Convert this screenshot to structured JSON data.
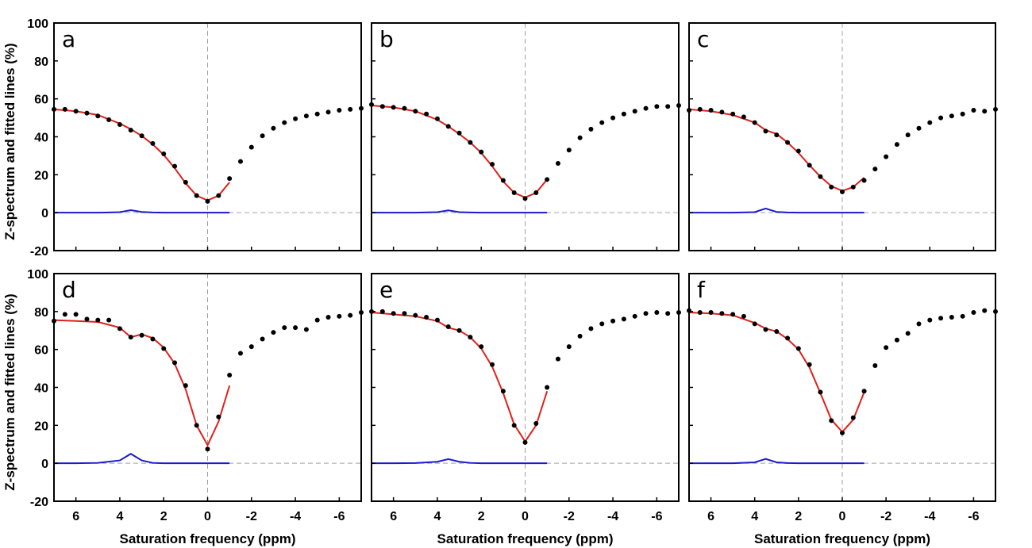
{
  "chart_data": {
    "type": "scatter",
    "xlabel": "Saturation frequency (ppm)",
    "ylabel": "Z-spectrum and fitted lines (%)",
    "xlim": [
      7,
      -7
    ],
    "ylim": [
      -20,
      100
    ],
    "x_reversed": true,
    "xticks": [
      6,
      4,
      2,
      0,
      -2,
      -4,
      -6
    ],
    "yticks": [
      -20,
      0,
      20,
      40,
      60,
      80,
      100
    ],
    "grid": false,
    "reference_lines": {
      "x": 0,
      "y": 0,
      "style": "dashed gray"
    },
    "colors": {
      "measured": "#000000",
      "fit": "#e0201b",
      "residual": "#1a1acc",
      "reference": "#a0a0a0"
    },
    "series_styles": {
      "measured": "black dots",
      "fit": "red line",
      "residual": "blue line"
    },
    "panels": [
      {
        "label": "a",
        "points": {
          "x": [
            7,
            6.5,
            6,
            5.5,
            5,
            4.5,
            4,
            3.5,
            3,
            2.5,
            2,
            1.5,
            1,
            0.5,
            0,
            -0.5,
            -1,
            -1.5,
            -2,
            -2.5,
            -3,
            -3.5,
            -4,
            -4.5,
            -5,
            -5.5,
            -6,
            -6.5,
            -7
          ],
          "y": [
            54.5,
            54.5,
            53.5,
            52.5,
            51,
            49,
            46.5,
            43.5,
            40.5,
            36.5,
            31,
            24.5,
            16,
            9,
            6,
            9,
            18,
            27,
            34.5,
            40.5,
            44.5,
            47.5,
            49.5,
            51,
            52,
            53,
            54,
            54.5,
            55
          ]
        },
        "fit": {
          "x": [
            7,
            6,
            5,
            4,
            3.5,
            3,
            2.5,
            2,
            1.5,
            1,
            0.5,
            0,
            -0.5,
            -1
          ],
          "y": [
            54.5,
            53.5,
            51.5,
            47,
            44,
            40.5,
            36,
            30.5,
            23.5,
            15.5,
            9,
            6.5,
            9,
            16
          ]
        },
        "residual": {
          "x": [
            7,
            6,
            5,
            4,
            3.5,
            3,
            2.5,
            2,
            1,
            0,
            -1
          ],
          "y": [
            0,
            0,
            0,
            0.3,
            1.3,
            0.4,
            0.1,
            0,
            0,
            0,
            0
          ]
        }
      },
      {
        "label": "b",
        "points": {
          "x": [
            7,
            6.5,
            6,
            5.5,
            5,
            4.5,
            4,
            3.5,
            3,
            2.5,
            2,
            1.5,
            1,
            0.5,
            0,
            -0.5,
            -1,
            -1.5,
            -2,
            -2.5,
            -3,
            -3.5,
            -4,
            -4.5,
            -5,
            -5.5,
            -6,
            -6.5,
            -7
          ],
          "y": [
            57,
            56,
            55.5,
            55,
            53.5,
            52,
            49.5,
            45.5,
            42,
            37,
            32,
            25.5,
            17,
            10.5,
            7.5,
            10.5,
            17.5,
            26,
            33,
            39.5,
            44,
            47.5,
            50,
            52,
            53.5,
            55,
            56,
            56,
            56.5
          ]
        },
        "fit": {
          "x": [
            7,
            6,
            5,
            4,
            3.5,
            3,
            2.5,
            2,
            1.5,
            1,
            0.5,
            0,
            -0.5,
            -1
          ],
          "y": [
            56.5,
            55.5,
            53.5,
            49,
            45.5,
            41.5,
            37,
            31.5,
            24.5,
            16.5,
            10.5,
            8,
            10.5,
            17.5
          ]
        },
        "residual": {
          "x": [
            7,
            6,
            5,
            4,
            3.5,
            3,
            2.5,
            2,
            1,
            0,
            -1
          ],
          "y": [
            0,
            0,
            0,
            0.3,
            1.2,
            0.3,
            0.1,
            0,
            0,
            0,
            0
          ]
        }
      },
      {
        "label": "c",
        "points": {
          "x": [
            7,
            6.5,
            6,
            5.5,
            5,
            4.5,
            4,
            3.5,
            3,
            2.5,
            2,
            1.5,
            1,
            0.5,
            0,
            -0.5,
            -1,
            -1.5,
            -2,
            -2.5,
            -3,
            -3.5,
            -4,
            -4.5,
            -5,
            -5.5,
            -6,
            -6.5,
            -7
          ],
          "y": [
            54,
            54.5,
            54,
            53,
            52,
            50.5,
            47.5,
            43,
            41,
            37,
            32.5,
            25,
            19,
            13.5,
            11,
            13.5,
            17,
            23,
            29.5,
            36,
            41,
            44.5,
            47.5,
            50,
            51,
            52,
            54,
            53.5,
            54.5
          ]
        },
        "fit": {
          "x": [
            7,
            6,
            5,
            4,
            3.5,
            3,
            2.5,
            2,
            1.5,
            1,
            0.5,
            0,
            -0.5,
            -1
          ],
          "y": [
            54.5,
            53.5,
            51.5,
            47.5,
            43.5,
            41.5,
            37,
            31.5,
            25,
            19,
            14,
            11.5,
            13.5,
            18.5
          ]
        },
        "residual": {
          "x": [
            7,
            6,
            5,
            4,
            3.5,
            3,
            2.5,
            2,
            1,
            0,
            -1
          ],
          "y": [
            0,
            0,
            0,
            0.3,
            2.2,
            0.4,
            0.1,
            0,
            0,
            0,
            0
          ]
        }
      },
      {
        "label": "d",
        "points": {
          "x": [
            7,
            6.5,
            6,
            5.5,
            5,
            4.5,
            4,
            3.5,
            3,
            2.5,
            2,
            1.5,
            1,
            0.5,
            0,
            -0.5,
            -1,
            -1.5,
            -2,
            -2.5,
            -3,
            -3.5,
            -4,
            -4.5,
            -5,
            -5.5,
            -6,
            -6.5,
            -7
          ],
          "y": [
            75,
            78.5,
            78.5,
            76,
            75.5,
            75.5,
            71,
            66.5,
            67.5,
            65.5,
            60.5,
            53,
            41,
            20,
            7.5,
            24.5,
            46.5,
            58,
            61.5,
            65.5,
            69,
            71.5,
            71.5,
            70.5,
            75.5,
            77,
            77.5,
            78,
            79.5
          ]
        },
        "fit": {
          "x": [
            7,
            6,
            5,
            4,
            3.5,
            3,
            2.5,
            2,
            1.5,
            1,
            0.5,
            0,
            -0.5,
            -1
          ],
          "y": [
            75.5,
            75,
            74.5,
            71.5,
            66.5,
            68,
            66,
            61,
            52.5,
            39,
            20,
            9.5,
            22,
            41
          ]
        },
        "residual": {
          "x": [
            7,
            6,
            5,
            4,
            3.5,
            3,
            2.5,
            2,
            1,
            0,
            -1
          ],
          "y": [
            0,
            0,
            0.2,
            1.5,
            5,
            1.5,
            0.2,
            0,
            0,
            0,
            0
          ]
        }
      },
      {
        "label": "e",
        "points": {
          "x": [
            7,
            6.5,
            6,
            5.5,
            5,
            4.5,
            4,
            3.5,
            3,
            2.5,
            2,
            1.5,
            1,
            0.5,
            0,
            -0.5,
            -1,
            -1.5,
            -2,
            -2.5,
            -3,
            -3.5,
            -4,
            -4.5,
            -5,
            -5.5,
            -6,
            -6.5,
            -7
          ],
          "y": [
            80,
            80,
            79,
            79,
            78,
            77,
            75.5,
            72,
            70,
            66.5,
            61.5,
            52,
            38,
            20,
            11,
            21,
            40,
            55,
            61.5,
            67,
            71,
            73.5,
            75,
            76,
            77.5,
            79,
            79.5,
            79,
            79.5
          ]
        },
        "fit": {
          "x": [
            7,
            6,
            5,
            4,
            3.5,
            3,
            2.5,
            2,
            1.5,
            1,
            0.5,
            0,
            -0.5,
            -1
          ],
          "y": [
            79.5,
            78.5,
            77.5,
            75,
            71.5,
            70,
            66.5,
            60.5,
            51,
            37,
            20.5,
            11.5,
            20,
            38
          ]
        },
        "residual": {
          "x": [
            7,
            6,
            5,
            4,
            3.5,
            3,
            2.5,
            2,
            1,
            0,
            -1
          ],
          "y": [
            0,
            0,
            0.1,
            0.8,
            2.2,
            0.8,
            0.2,
            0,
            0,
            0,
            0
          ]
        }
      },
      {
        "label": "f",
        "points": {
          "x": [
            7,
            6.5,
            6,
            5.5,
            5,
            4.5,
            4,
            3.5,
            3,
            2.5,
            2,
            1.5,
            1,
            0.5,
            0,
            -0.5,
            -1,
            -1.5,
            -2,
            -2.5,
            -3,
            -3.5,
            -4,
            -4.5,
            -5,
            -5.5,
            -6,
            -6.5,
            -7
          ],
          "y": [
            80.5,
            79.5,
            79.5,
            79,
            78.5,
            77.5,
            73.5,
            70.5,
            69.5,
            66,
            60.5,
            52,
            37.5,
            22.5,
            16,
            24,
            38,
            51.5,
            61,
            65,
            68.5,
            73.5,
            75.5,
            76.5,
            77,
            77.5,
            79.5,
            80.5,
            80
          ]
        },
        "fit": {
          "x": [
            7,
            6,
            5,
            4,
            3.5,
            3,
            2.5,
            2,
            1.5,
            1,
            0.5,
            0,
            -0.5,
            -1
          ],
          "y": [
            79.5,
            79,
            78,
            74,
            71,
            69.5,
            65.5,
            60,
            50.5,
            37,
            23,
            16.5,
            23,
            37.5
          ]
        },
        "residual": {
          "x": [
            7,
            6,
            5,
            4,
            3.5,
            3,
            2.5,
            2,
            1,
            0,
            -1
          ],
          "y": [
            0,
            0,
            0,
            0.5,
            2.3,
            0.5,
            0.1,
            0,
            0,
            0,
            0
          ]
        }
      }
    ]
  }
}
